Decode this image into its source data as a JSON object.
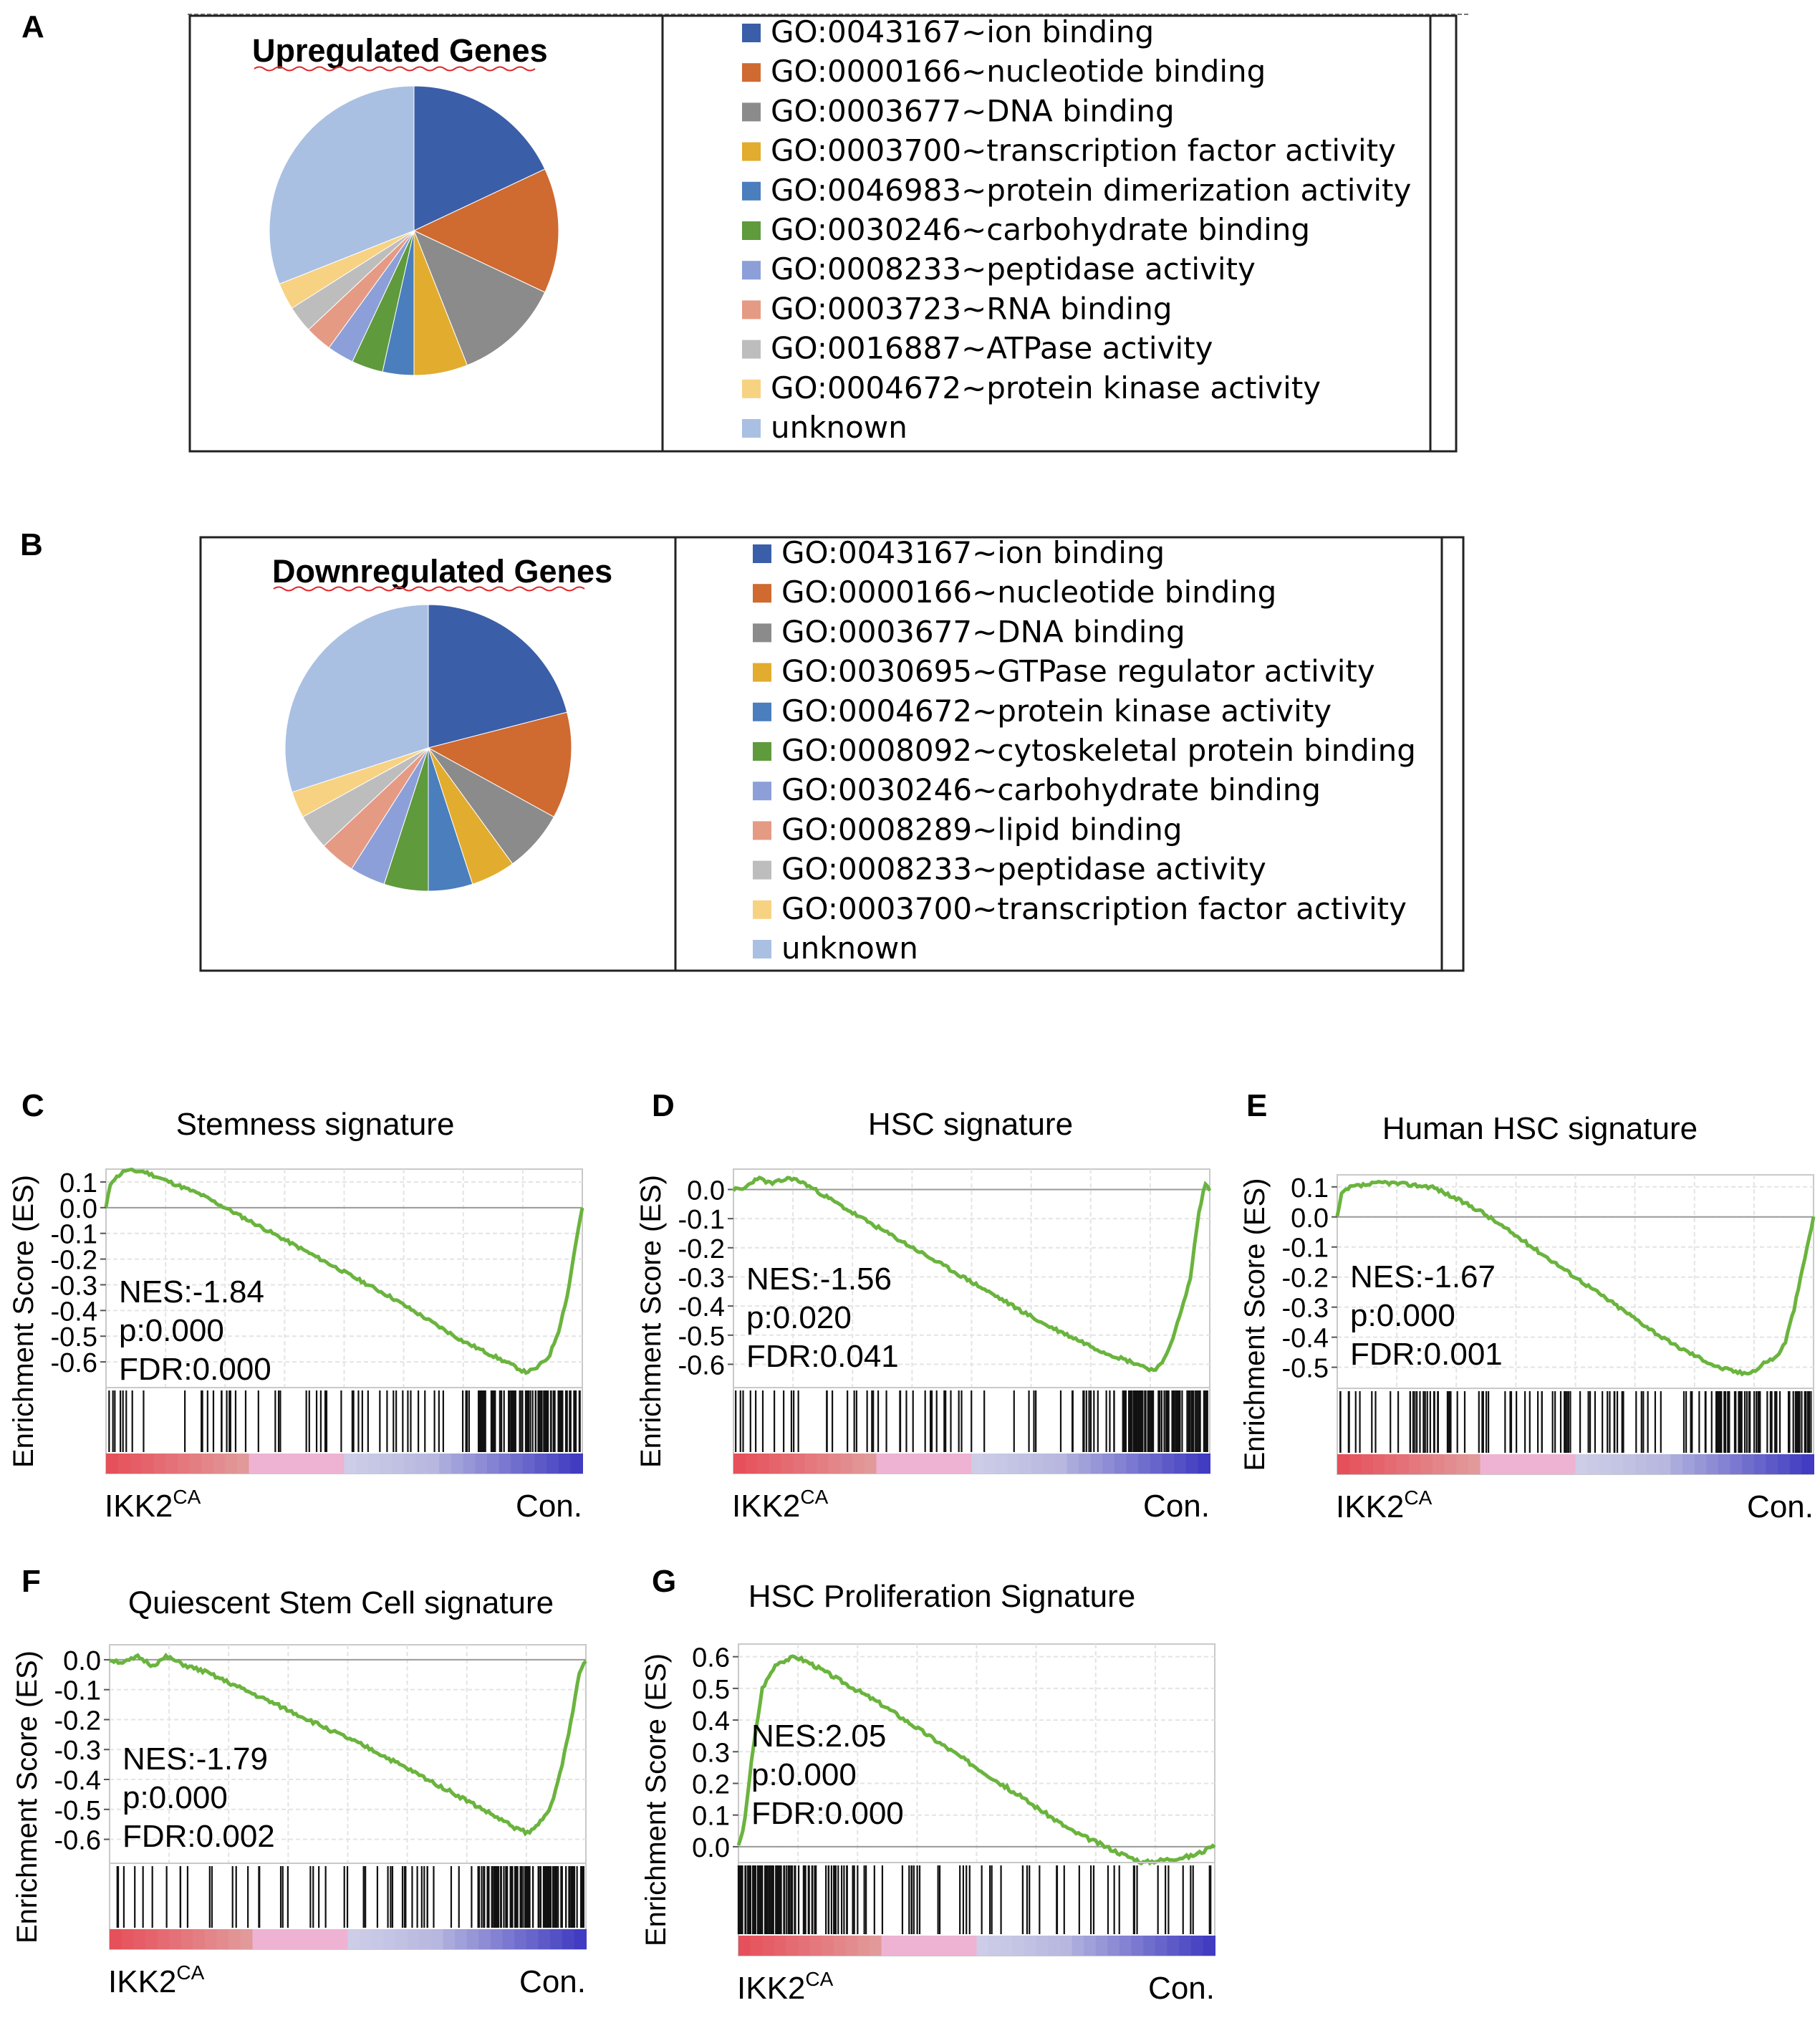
{
  "panels": {
    "A": "A",
    "B": "B",
    "C": "C",
    "D": "D",
    "E": "E",
    "F": "F",
    "G": "G"
  },
  "colors": {
    "ion": "#3b5ea8",
    "nucleotide": "#cf6a31",
    "dna": "#8b8b8b",
    "yellow": "#e2ac2e",
    "blue2": "#4a7ebd",
    "green": "#5f9a3d",
    "lavender": "#8d9fd8",
    "salmon": "#e59a84",
    "lightgray": "#bdbdbd",
    "lightyellow": "#f7d283",
    "unknown": "#a9c0e2",
    "es_line": "#6ab43e"
  },
  "chart_data": [
    {
      "id": "pieA",
      "type": "pie",
      "title": "Upregulated Genes",
      "labels": [
        "GO:0043167~ion binding",
        "GO:0000166~nucleotide binding",
        "GO:0003677~DNA binding",
        "GO:0003700~transcription factor activity",
        "GO:0046983~protein dimerization activity",
        "GO:0030246~carbohydrate binding",
        "GO:0008233~peptidase activity",
        "GO:0003723~RNA binding",
        "GO:0016887~ATPase activity",
        "GO:0004672~protein kinase activity",
        "unknown"
      ],
      "values": [
        18,
        14,
        12,
        6,
        3.5,
        3.5,
        3,
        3,
        3,
        3,
        31
      ],
      "colors": [
        "#3b5ea8",
        "#cf6a31",
        "#8b8b8b",
        "#e2ac2e",
        "#4a7ebd",
        "#5f9a3d",
        "#8d9fd8",
        "#e59a84",
        "#bdbdbd",
        "#f7d283",
        "#a9c0e2"
      ]
    },
    {
      "id": "pieB",
      "type": "pie",
      "title": "Downregulated Genes",
      "labels": [
        "GO:0043167~ion binding",
        "GO:0000166~nucleotide binding",
        "GO:0003677~DNA binding",
        "GO:0030695~GTPase regulator activity",
        "GO:0004672~protein kinase activity",
        "GO:0008092~cytoskeletal protein binding",
        "GO:0030246~carbohydrate binding",
        "GO:0008289~lipid binding",
        "GO:0008233~peptidase activity",
        "GO:0003700~transcription factor activity",
        "unknown"
      ],
      "values": [
        21,
        12,
        7,
        5,
        5,
        5,
        4,
        4,
        4,
        3,
        30
      ],
      "colors": [
        "#3b5ea8",
        "#cf6a31",
        "#8b8b8b",
        "#e2ac2e",
        "#4a7ebd",
        "#5f9a3d",
        "#8d9fd8",
        "#e59a84",
        "#bdbdbd",
        "#f7d283",
        "#a9c0e2"
      ]
    },
    {
      "id": "gseaC",
      "type": "line",
      "title": "Stemness signature",
      "ylabel": "Enrichment Score (ES)",
      "yticks": [
        "0.1",
        "0.0",
        "-0.1",
        "-0.2",
        "-0.3",
        "-0.4",
        "-0.5",
        "-0.6"
      ],
      "ylim": [
        -0.7,
        0.15
      ],
      "x": [
        0,
        0.01,
        0.04,
        0.08,
        0.2,
        0.4,
        0.6,
        0.75,
        0.85,
        0.88,
        0.9,
        0.93,
        0.95,
        0.97,
        0.985,
        1.0
      ],
      "values": [
        0,
        0.1,
        0.145,
        0.14,
        0.05,
        -0.15,
        -0.35,
        -0.52,
        -0.61,
        -0.64,
        -0.63,
        -0.58,
        -0.48,
        -0.33,
        -0.15,
        0.0
      ],
      "annotations": [
        "NES:-1.84",
        "p:0.000",
        "FDR:0.000"
      ],
      "xlabel_left": "IKK2",
      "xlabel_left_sup": "CA",
      "xlabel_right": "Con."
    },
    {
      "id": "gseaD",
      "type": "line",
      "title": "HSC signature",
      "ylabel": "Enrichment Score (ES)",
      "yticks": [
        "0.0",
        "-0.1",
        "-0.2",
        "-0.3",
        "-0.4",
        "-0.5",
        "-0.6"
      ],
      "ylim": [
        -0.68,
        0.07
      ],
      "x": [
        0,
        0.02,
        0.05,
        0.08,
        0.12,
        0.15,
        0.25,
        0.45,
        0.65,
        0.78,
        0.85,
        0.88,
        0.9,
        0.92,
        0.94,
        0.96,
        0.975,
        0.99,
        1.0
      ],
      "values": [
        0,
        0.0,
        0.04,
        0.02,
        0.04,
        0.02,
        -0.08,
        -0.27,
        -0.46,
        -0.56,
        -0.6,
        -0.62,
        -0.6,
        -0.52,
        -0.42,
        -0.3,
        -0.1,
        0.02,
        0.0
      ],
      "annotations": [
        "NES:-1.56",
        "p:0.020",
        "FDR:0.041"
      ],
      "xlabel_left": "IKK2",
      "xlabel_left_sup": "CA",
      "xlabel_right": "Con."
    },
    {
      "id": "gseaE",
      "type": "line",
      "title": "Human HSC signature",
      "ylabel": "Enrichment Score (ES)",
      "yticks": [
        "0.1",
        "0.0",
        "-0.1",
        "-0.2",
        "-0.3",
        "-0.4",
        "-0.5"
      ],
      "ylim": [
        -0.57,
        0.14
      ],
      "x": [
        0,
        0.01,
        0.03,
        0.1,
        0.2,
        0.3,
        0.5,
        0.7,
        0.8,
        0.85,
        0.88,
        0.9,
        0.92,
        0.94,
        0.96,
        0.98,
        1.0
      ],
      "values": [
        0,
        0.08,
        0.1,
        0.115,
        0.1,
        0.02,
        -0.2,
        -0.42,
        -0.5,
        -0.52,
        -0.51,
        -0.48,
        -0.47,
        -0.42,
        -0.3,
        -0.15,
        0.0
      ],
      "annotations": [
        "NES:-1.67",
        "p:0.000",
        "FDR:0.001"
      ],
      "xlabel_left": "IKK2",
      "xlabel_left_sup": "CA",
      "xlabel_right": "Con."
    },
    {
      "id": "gseaF",
      "type": "line",
      "title": "Quiescent Stem Cell signature",
      "ylabel": "Enrichment Score (ES)",
      "yticks": [
        "0.0",
        "-0.1",
        "-0.2",
        "-0.3",
        "-0.4",
        "-0.5",
        "-0.6"
      ],
      "ylim": [
        -0.68,
        0.05
      ],
      "x": [
        0,
        0.03,
        0.06,
        0.09,
        0.12,
        0.16,
        0.2,
        0.35,
        0.55,
        0.75,
        0.85,
        0.88,
        0.9,
        0.93,
        0.95,
        0.97,
        0.985,
        1.0
      ],
      "values": [
        0,
        -0.01,
        0.01,
        -0.02,
        0.01,
        -0.02,
        -0.04,
        -0.15,
        -0.3,
        -0.47,
        -0.56,
        -0.58,
        -0.55,
        -0.48,
        -0.35,
        -0.2,
        -0.05,
        0.0
      ],
      "annotations": [
        "NES:-1.79",
        "p:0.000",
        "FDR:0.002"
      ],
      "xlabel_left": "IKK2",
      "xlabel_left_sup": "CA",
      "xlabel_right": "Con."
    },
    {
      "id": "gseaG",
      "type": "line",
      "title": "HSC Proliferation Signature",
      "ylabel": "Enrichment Score (ES)",
      "yticks": [
        "0.6",
        "0.5",
        "0.4",
        "0.3",
        "0.2",
        "0.1",
        "0.0"
      ],
      "ylim": [
        -0.05,
        0.64
      ],
      "x": [
        0,
        0.01,
        0.03,
        0.05,
        0.08,
        0.12,
        0.15,
        0.3,
        0.5,
        0.7,
        0.8,
        0.85,
        0.9,
        0.95,
        1.0
      ],
      "values": [
        0,
        0.05,
        0.3,
        0.5,
        0.58,
        0.6,
        0.58,
        0.45,
        0.25,
        0.05,
        -0.02,
        -0.05,
        -0.04,
        -0.03,
        0.0
      ],
      "annotations": [
        "NES:2.05",
        "p:0.000",
        "FDR:0.000"
      ],
      "xlabel_left": "IKK2",
      "xlabel_left_sup": "CA",
      "xlabel_right": "Con."
    }
  ]
}
